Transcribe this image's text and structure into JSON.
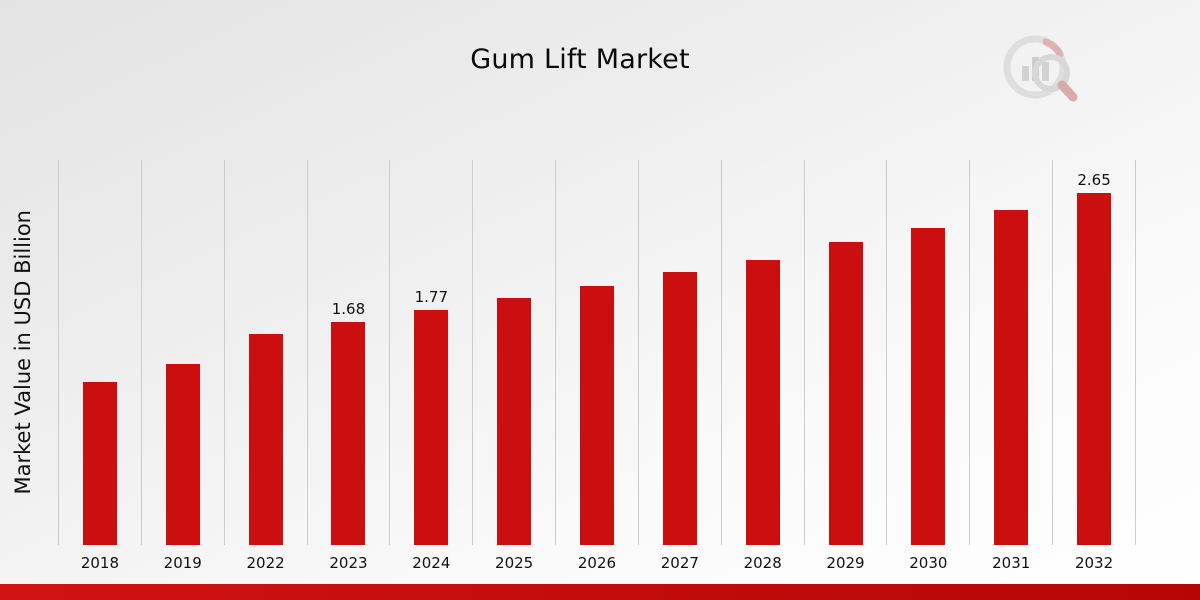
{
  "page": {
    "title": "Gum Lift Market"
  },
  "chart_data": {
    "type": "bar",
    "title": "Gum Lift Market",
    "xlabel": "",
    "ylabel": "Market Value in USD Billion",
    "categories": [
      "2018",
      "2019",
      "2022",
      "2023",
      "2024",
      "2025",
      "2026",
      "2027",
      "2028",
      "2029",
      "2030",
      "2031",
      "2032"
    ],
    "values": [
      1.23,
      1.36,
      1.59,
      1.68,
      1.77,
      1.86,
      1.95,
      2.06,
      2.15,
      2.28,
      2.39,
      2.52,
      2.65
    ],
    "point_labels": {
      "2023": "1.68",
      "2024": "1.77",
      "2032": "2.65"
    },
    "ylim": [
      0,
      2.9
    ],
    "grid": "vertical-only",
    "legend": "none",
    "bar_color": "#cb0e0e",
    "footer_bar_color": "#c40808",
    "gridline_color": "#cccccc"
  }
}
